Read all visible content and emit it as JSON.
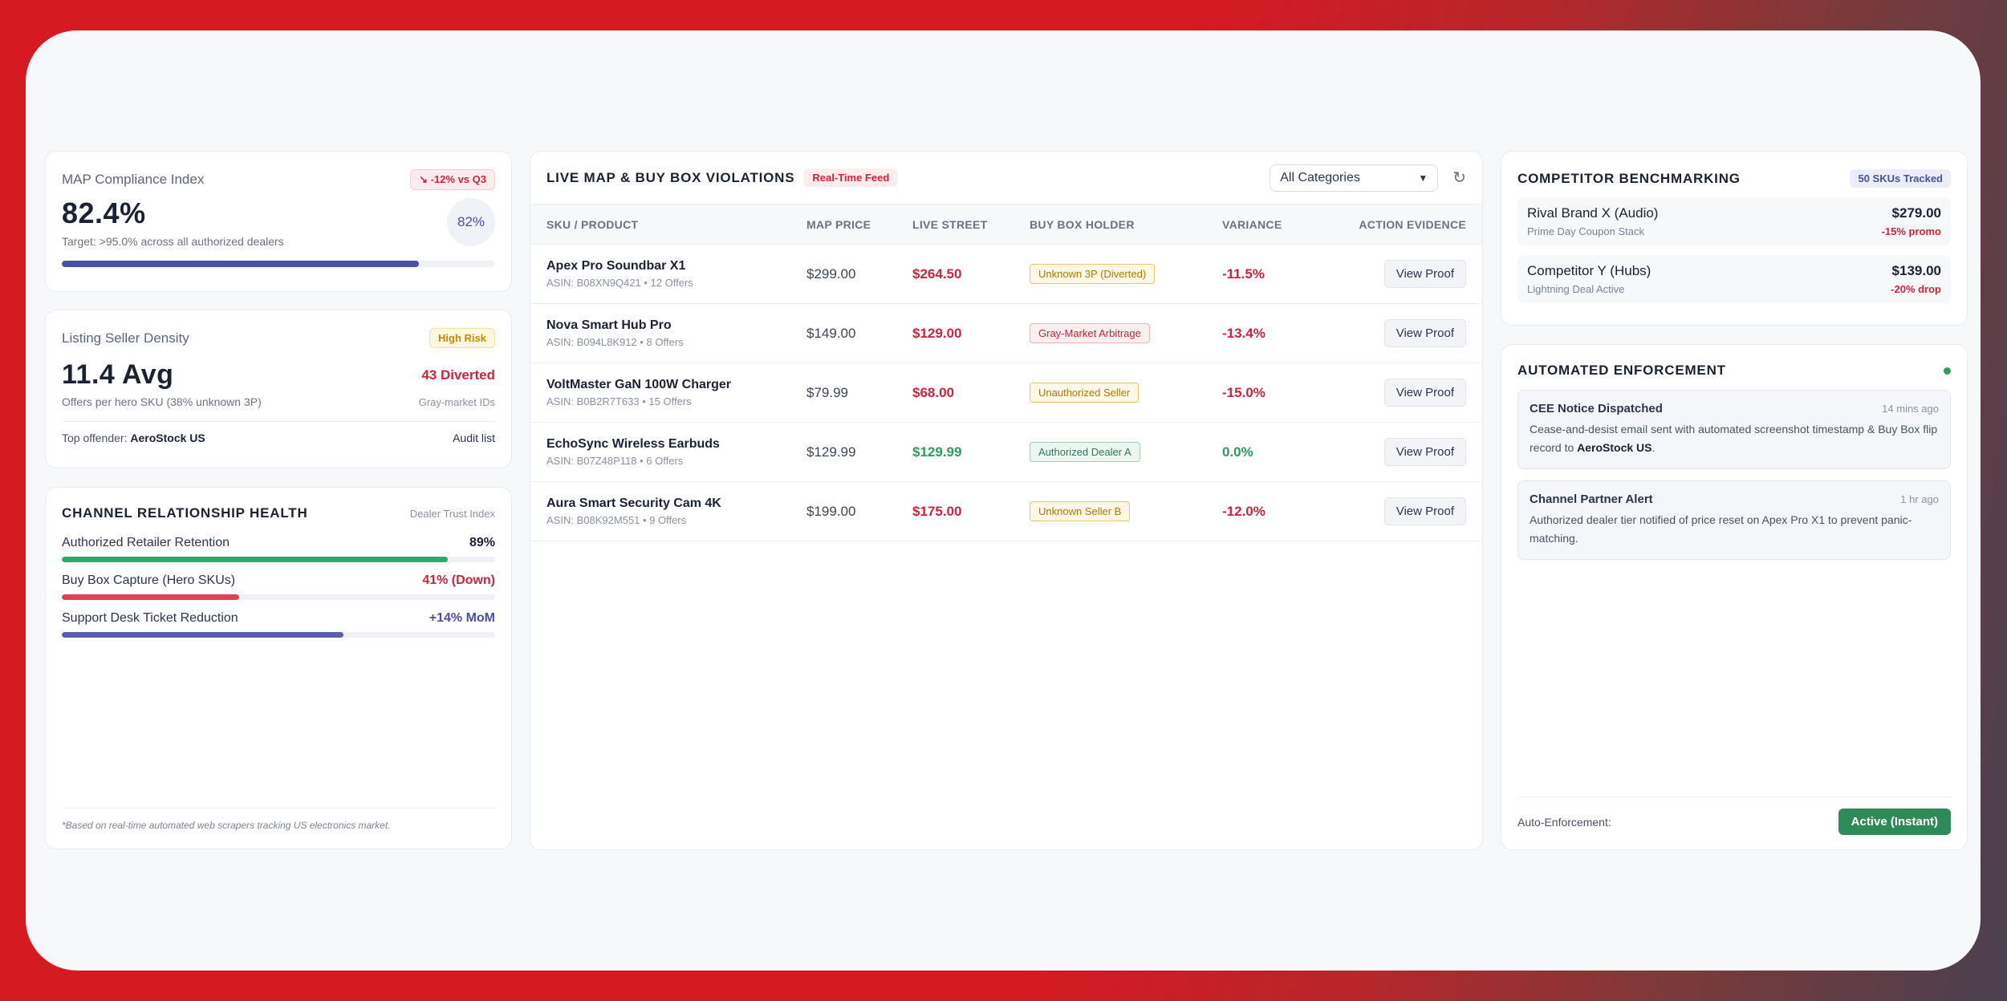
{
  "map_card": {
    "title": "MAP Compliance Index",
    "badge": "↘ -12% vs Q3",
    "value": "82.4%",
    "target": "Target: >95.0% across all authorized dealers",
    "circle": "82%",
    "progress": 0.824,
    "bar_color": "#4a50a8"
  },
  "density_card": {
    "title": "Listing Seller Density",
    "badge": "High Risk",
    "value": "11.4 Avg",
    "diverted": "43 Diverted",
    "desc": "Offers per hero SKU (38% unknown 3P)",
    "diverted_sub": "Gray-market IDs",
    "top_offender_label": "Top offender:",
    "top_offender": "AeroStock US",
    "audit_link": "Audit list"
  },
  "health_card": {
    "title": "CHANNEL RELATIONSHIP HEALTH",
    "subtitle": "Dealer Trust Index",
    "metrics": [
      {
        "label": "Authorized Retailer Retention",
        "value": "89%",
        "progress": 0.89,
        "color": "#2eaa6e"
      },
      {
        "label": "Buy Box Capture (Hero SKUs)",
        "value": "41% (Down)",
        "progress": 0.41,
        "color": "#e0405a"
      },
      {
        "label": "Support Desk Ticket Reduction",
        "value": "+14% MoM",
        "progress": 0.65,
        "color": "#5a5ea8"
      }
    ],
    "footnote": "*Based on real-time automated web scrapers tracking US electronics market."
  },
  "violations": {
    "title": "LIVE MAP & BUY BOX VIOLATIONS",
    "badge": "Real-Time Feed",
    "filter": "All Categories",
    "columns": [
      "SKU / PRODUCT",
      "MAP PRICE",
      "LIVE STREET",
      "BUY BOX HOLDER",
      "VARIANCE",
      "ACTION EVIDENCE"
    ],
    "rows": [
      {
        "name": "Apex Pro Soundbar X1",
        "sub": "ASIN: B08XN9Q421 • 12 Offers",
        "map": "$299.00",
        "live": "$264.50",
        "live_state": "red",
        "holder": "Unknown 3P (Diverted)",
        "holder_state": "amber",
        "variance": "-11.5%",
        "var_state": "red",
        "action": "View Proof"
      },
      {
        "name": "Nova Smart Hub Pro",
        "sub": "ASIN: B094L8K912 • 8 Offers",
        "map": "$149.00",
        "live": "$129.00",
        "live_state": "red",
        "holder": "Gray-Market Arbitrage",
        "holder_state": "red",
        "variance": "-13.4%",
        "var_state": "red",
        "action": "View Proof"
      },
      {
        "name": "VoltMaster GaN 100W Charger",
        "sub": "ASIN: B0B2R7T633 • 15 Offers",
        "map": "$79.99",
        "live": "$68.00",
        "live_state": "red",
        "holder": "Unauthorized Seller",
        "holder_state": "amber",
        "variance": "-15.0%",
        "var_state": "red",
        "action": "View Proof"
      },
      {
        "name": "EchoSync Wireless Earbuds",
        "sub": "ASIN: B07Z48P118 • 6 Offers",
        "map": "$129.99",
        "live": "$129.99",
        "live_state": "green",
        "holder": "Authorized Dealer A",
        "holder_state": "green",
        "variance": "0.0%",
        "var_state": "green",
        "action": "View Proof"
      },
      {
        "name": "Aura Smart Security Cam 4K",
        "sub": "ASIN: B08K92M551 • 9 Offers",
        "map": "$199.00",
        "live": "$175.00",
        "live_state": "red",
        "holder": "Unknown Seller B",
        "holder_state": "amber",
        "variance": "-12.0%",
        "var_state": "red",
        "action": "View Proof"
      }
    ]
  },
  "benchmark": {
    "title": "COMPETITOR BENCHMARKING",
    "badge": "50 SKUs Tracked",
    "items": [
      {
        "name": "Rival Brand X (Audio)",
        "price": "$279.00",
        "sub": "Prime Day Coupon Stack",
        "tag": "-15% promo"
      },
      {
        "name": "Competitor Y (Hubs)",
        "price": "$139.00",
        "sub": "Lightning Deal Active",
        "tag": "-20% drop"
      }
    ]
  },
  "enforcement": {
    "title": "AUTOMATED ENFORCEMENT",
    "alerts": [
      {
        "title": "CEE Notice Dispatched",
        "time": "14 mins ago",
        "body": "Cease-and-desist email sent with automated screenshot timestamp & Buy Box flip record to ",
        "bold": "AeroStock US",
        "tail": "."
      },
      {
        "title": "Channel Partner Alert",
        "time": "1 hr ago",
        "body": "Authorized dealer tier notified of price reset on Apex Pro X1 to prevent panic-matching.",
        "bold": "",
        "tail": ""
      }
    ],
    "footer_label": "Auto-Enforcement:",
    "footer_button": "Active (Instant)"
  }
}
